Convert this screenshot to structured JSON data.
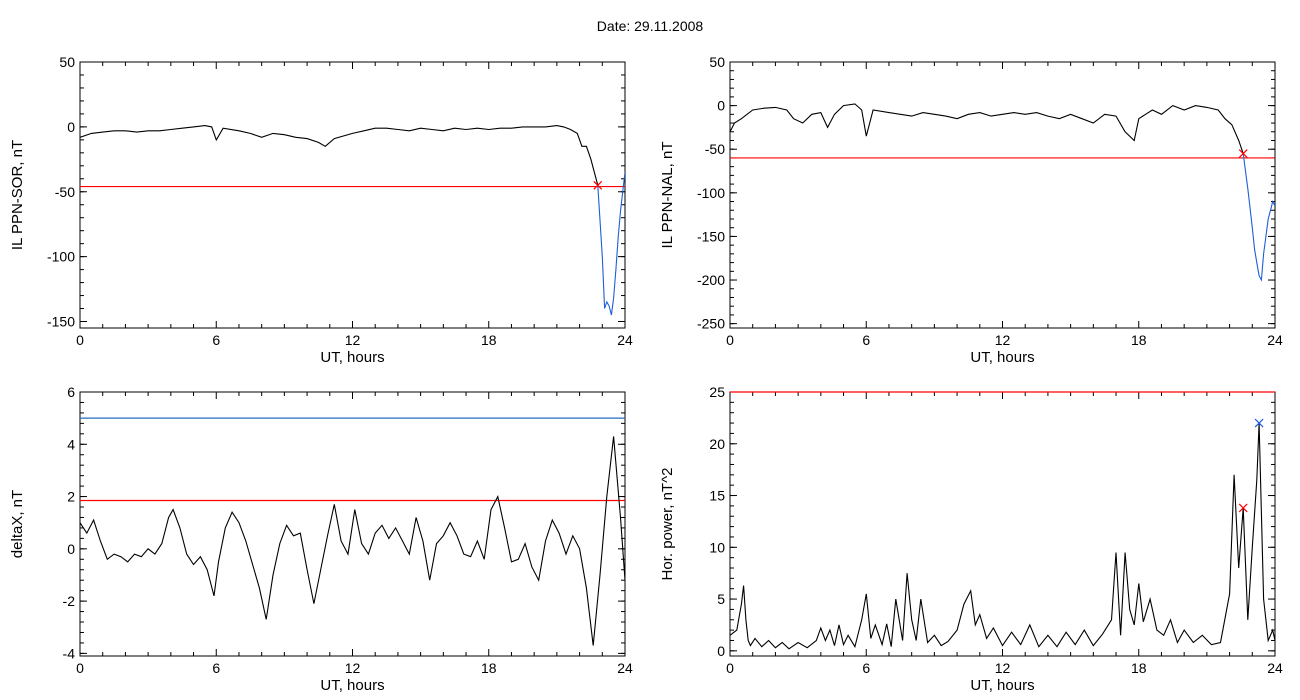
{
  "page": {
    "title": "Date:  29.11.2008"
  },
  "colors": {
    "trace": "#000000",
    "threshold_red": "#ff0000",
    "threshold_blue": "#1f6fbf",
    "event_blue": "#1f5fd6",
    "marker_green": "#22aa22"
  },
  "chart_data": [
    {
      "id": "sor",
      "type": "line",
      "ylabel": "IL PPN-SOR, nT",
      "xlabel": "UT, hours",
      "xlim": [
        0,
        24
      ],
      "ylim": [
        -155,
        50
      ],
      "xticks": [
        0,
        6,
        12,
        18,
        24
      ],
      "yticks": [
        50,
        0,
        -50,
        -100,
        -150
      ],
      "ytick_labels": [
        "50",
        "0",
        "-50",
        "-100",
        "-150"
      ],
      "threshold": {
        "y": -46,
        "color": "red"
      },
      "marker": {
        "x": 22.8,
        "y": -45,
        "color": "red"
      },
      "series": [
        {
          "color": "black",
          "x": [
            0,
            0.5,
            1,
            1.5,
            2,
            2.5,
            3,
            3.5,
            4,
            4.5,
            5,
            5.5,
            5.8,
            6.0,
            6.3,
            7,
            7.5,
            8,
            8.5,
            9,
            9.5,
            10,
            10.5,
            10.8,
            11.2,
            12,
            12.5,
            13,
            13.5,
            14,
            14.5,
            15,
            15.5,
            16,
            16.5,
            17,
            17.5,
            18,
            18.5,
            19,
            19.5,
            20,
            20.5,
            21,
            21.3,
            21.6,
            21.9,
            22.1,
            22.3,
            22.5,
            22.8
          ],
          "y": [
            -8,
            -5,
            -4,
            -3,
            -3,
            -4,
            -3,
            -3,
            -2,
            -1,
            0,
            1,
            0,
            -10,
            -1,
            -3,
            -5,
            -8,
            -5,
            -6,
            -8,
            -9,
            -12,
            -15,
            -9,
            -5,
            -3,
            -1,
            -1,
            -2,
            -3,
            -1,
            -2,
            -3,
            -1,
            -2,
            -1,
            -2,
            -1,
            -1,
            0,
            0,
            0,
            1,
            0,
            -2,
            -5,
            -15,
            -15,
            -25,
            -45
          ]
        },
        {
          "color": "blue",
          "x": [
            22.8,
            23.0,
            23.1,
            23.2,
            23.3,
            23.4,
            23.5,
            23.6,
            23.7,
            23.8,
            23.9,
            24.0
          ],
          "y": [
            -45,
            -100,
            -140,
            -135,
            -138,
            -145,
            -132,
            -110,
            -85,
            -65,
            -50,
            -35
          ]
        }
      ]
    },
    {
      "id": "nal",
      "type": "line",
      "ylabel": "IL PPN-NAL, nT",
      "xlabel": "UT, hours",
      "xlim": [
        0,
        24
      ],
      "ylim": [
        -255,
        50
      ],
      "xticks": [
        0,
        6,
        12,
        18,
        24
      ],
      "yticks": [
        50,
        0,
        -50,
        -100,
        -150,
        -200,
        -250
      ],
      "ytick_labels": [
        "50",
        "0",
        "-50",
        "-100",
        "-150",
        "-200",
        "-250"
      ],
      "threshold": {
        "y": -60,
        "color": "red"
      },
      "marker": {
        "x": 22.6,
        "y": -55,
        "color": "red"
      },
      "series": [
        {
          "color": "black",
          "x": [
            0,
            0.2,
            0.5,
            1,
            1.5,
            2,
            2.5,
            2.8,
            3.2,
            3.6,
            4,
            4.3,
            4.6,
            5,
            5.5,
            5.8,
            6.0,
            6.3,
            7,
            7.5,
            8,
            8.5,
            9,
            9.5,
            10,
            10.5,
            11,
            11.5,
            12,
            12.5,
            13,
            13.5,
            14,
            14.5,
            15,
            15.5,
            16,
            16.5,
            17,
            17.4,
            17.8,
            18.0,
            18.3,
            18.6,
            19,
            19.5,
            20,
            20.5,
            21,
            21.5,
            21.8,
            22.1,
            22.4,
            22.6
          ],
          "y": [
            -30,
            -20,
            -15,
            -5,
            -3,
            -2,
            -5,
            -15,
            -20,
            -10,
            -8,
            -25,
            -10,
            0,
            2,
            -5,
            -35,
            -5,
            -8,
            -10,
            -12,
            -8,
            -10,
            -12,
            -15,
            -10,
            -8,
            -12,
            -10,
            -8,
            -10,
            -8,
            -12,
            -15,
            -10,
            -15,
            -20,
            -10,
            -12,
            -30,
            -40,
            -15,
            -10,
            -5,
            -10,
            0,
            -5,
            0,
            -2,
            -5,
            -15,
            -22,
            -40,
            -55
          ]
        },
        {
          "color": "blue",
          "x": [
            22.6,
            22.8,
            23.0,
            23.1,
            23.2,
            23.3,
            23.4,
            23.5,
            23.6,
            23.7,
            23.8,
            23.9,
            24.0
          ],
          "y": [
            -55,
            -95,
            -140,
            -165,
            -180,
            -195,
            -200,
            -170,
            -150,
            -130,
            -120,
            -110,
            -115
          ]
        }
      ]
    },
    {
      "id": "deltax",
      "type": "line",
      "ylabel": "deltaX, nT",
      "xlabel": "UT, hours",
      "xlim": [
        0,
        24
      ],
      "ylim": [
        -4.1,
        6
      ],
      "xticks": [
        0,
        6,
        12,
        18,
        24
      ],
      "yticks": [
        6,
        4,
        2,
        0,
        -2,
        -4
      ],
      "ytick_labels": [
        "6",
        "4",
        "2",
        "0",
        "-2",
        "-4"
      ],
      "threshold": {
        "y": 1.85,
        "color": "red"
      },
      "threshold2": {
        "y": 5.0,
        "color": "blue"
      },
      "series": [
        {
          "color": "black",
          "x": [
            0,
            0.3,
            0.6,
            0.9,
            1.2,
            1.5,
            1.8,
            2.1,
            2.4,
            2.7,
            3.0,
            3.3,
            3.6,
            3.9,
            4.1,
            4.4,
            4.7,
            5.0,
            5.3,
            5.6,
            5.9,
            6.1,
            6.4,
            6.7,
            7.0,
            7.3,
            7.6,
            7.9,
            8.2,
            8.5,
            8.8,
            9.1,
            9.4,
            9.7,
            10.0,
            10.3,
            10.6,
            10.9,
            11.2,
            11.5,
            11.8,
            12.1,
            12.4,
            12.7,
            13.0,
            13.3,
            13.6,
            13.9,
            14.2,
            14.5,
            14.8,
            15.1,
            15.4,
            15.7,
            16.0,
            16.3,
            16.6,
            16.9,
            17.2,
            17.5,
            17.8,
            18.1,
            18.4,
            18.7,
            19.0,
            19.3,
            19.6,
            19.9,
            20.2,
            20.5,
            20.8,
            21.1,
            21.4,
            21.7,
            22.0,
            22.3,
            22.6,
            22.9,
            23.2,
            23.5,
            23.8,
            24.0
          ],
          "y": [
            1.0,
            0.6,
            1.1,
            0.3,
            -0.4,
            -0.2,
            -0.3,
            -0.5,
            -0.2,
            -0.3,
            0.0,
            -0.2,
            0.2,
            1.2,
            1.5,
            0.8,
            -0.2,
            -0.6,
            -0.3,
            -0.8,
            -1.8,
            -0.5,
            0.8,
            1.4,
            1.0,
            0.3,
            -0.6,
            -1.5,
            -2.7,
            -1.0,
            0.2,
            0.9,
            0.5,
            0.6,
            -0.8,
            -2.1,
            -0.8,
            0.5,
            1.7,
            0.3,
            -0.2,
            1.5,
            0.2,
            -0.2,
            0.6,
            0.9,
            0.4,
            0.8,
            0.3,
            -0.2,
            1.2,
            0.3,
            -1.2,
            0.2,
            0.5,
            1.0,
            0.5,
            -0.2,
            -0.3,
            0.3,
            -0.4,
            1.5,
            2.0,
            0.8,
            -0.5,
            -0.4,
            0.2,
            -0.7,
            -1.2,
            0.3,
            1.1,
            0.6,
            -0.2,
            0.5,
            0.0,
            -1.5,
            -3.7,
            -1.0,
            2.0,
            4.3,
            1.2,
            -1.2
          ]
        }
      ]
    },
    {
      "id": "power",
      "type": "line",
      "ylabel": "Hor. power, nT^2",
      "xlabel": "UT, hours",
      "xlim": [
        0,
        24
      ],
      "ylim": [
        -0.5,
        25
      ],
      "xticks": [
        0,
        6,
        12,
        18,
        24
      ],
      "yticks": [
        25,
        20,
        15,
        10,
        5,
        0
      ],
      "ytick_labels": [
        "25",
        "20",
        "15",
        "10",
        "5",
        "0"
      ],
      "threshold": {
        "y": 25,
        "color": "red"
      },
      "marker": {
        "x": 22.6,
        "y": 13.8,
        "color": "red"
      },
      "marker2": {
        "x": 23.3,
        "y": 22.0,
        "color": "blue"
      },
      "series": [
        {
          "color": "black",
          "x": [
            0,
            0.3,
            0.5,
            0.6,
            0.7,
            0.8,
            0.9,
            1.1,
            1.4,
            1.7,
            2.0,
            2.3,
            2.6,
            3.0,
            3.4,
            3.8,
            4.0,
            4.2,
            4.4,
            4.6,
            4.8,
            5.0,
            5.2,
            5.5,
            5.8,
            6.0,
            6.2,
            6.4,
            6.7,
            6.9,
            7.1,
            7.3,
            7.6,
            7.8,
            8.0,
            8.2,
            8.4,
            8.7,
            9.0,
            9.3,
            9.6,
            10.0,
            10.3,
            10.6,
            10.8,
            11.0,
            11.3,
            11.6,
            12.0,
            12.4,
            12.8,
            13.2,
            13.6,
            14.0,
            14.4,
            14.8,
            15.2,
            15.6,
            16.0,
            16.4,
            16.8,
            17.0,
            17.2,
            17.4,
            17.6,
            17.8,
            18.0,
            18.2,
            18.5,
            18.8,
            19.1,
            19.4,
            19.7,
            20.0,
            20.4,
            20.8,
            21.2,
            21.6,
            22.0,
            22.2,
            22.4,
            22.6,
            22.8,
            23.0,
            23.2,
            23.3,
            23.5,
            23.7,
            23.9,
            24.0
          ],
          "y": [
            1.5,
            2.0,
            4.5,
            6.3,
            3.0,
            1.0,
            0.5,
            1.2,
            0.4,
            1.0,
            0.3,
            0.8,
            0.2,
            0.8,
            0.3,
            1.0,
            2.2,
            1.0,
            2.0,
            0.5,
            2.5,
            0.6,
            1.5,
            0.4,
            3.0,
            5.5,
            1.2,
            2.5,
            0.6,
            2.6,
            0.4,
            5.0,
            1.0,
            7.5,
            3.0,
            1.0,
            5.0,
            0.8,
            1.5,
            0.5,
            0.9,
            2.0,
            4.5,
            5.8,
            2.5,
            3.5,
            1.2,
            2.2,
            0.5,
            1.8,
            0.6,
            2.5,
            0.4,
            1.5,
            0.4,
            1.8,
            0.6,
            2.0,
            0.5,
            1.6,
            3.0,
            9.5,
            1.5,
            9.5,
            4.0,
            2.5,
            6.5,
            2.8,
            5.0,
            2.0,
            1.5,
            3.0,
            0.8,
            2.0,
            0.8,
            1.5,
            0.6,
            0.8,
            5.5,
            17.0,
            8.0,
            13.8,
            3.0,
            10.0,
            16.5,
            22.0,
            5.0,
            1.0,
            2.0,
            1.0
          ]
        }
      ]
    }
  ]
}
